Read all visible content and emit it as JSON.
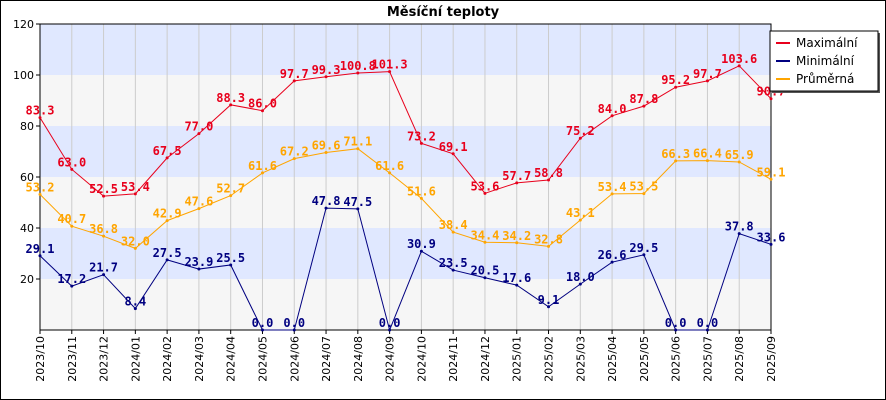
{
  "chart_data": {
    "type": "line",
    "title": "Měsíční teploty",
    "xlabel": "",
    "ylabel": "",
    "ylim": [
      0,
      120
    ],
    "yticks": [
      20,
      40,
      60,
      80,
      100,
      120
    ],
    "grid": true,
    "legend_position": "top-right",
    "categories": [
      "2023/10",
      "2023/11",
      "2023/12",
      "2024/01",
      "2024/02",
      "2024/03",
      "2024/04",
      "2024/05",
      "2024/06",
      "2024/07",
      "2024/08",
      "2024/09",
      "2024/10",
      "2024/11",
      "2024/12",
      "2025/01",
      "2025/02",
      "2025/03",
      "2025/04",
      "2025/05",
      "2025/06",
      "2025/07",
      "2025/08",
      "2025/09"
    ],
    "series": [
      {
        "name": "Maximální",
        "color": "#e8001c",
        "values": [
          83.3,
          63.0,
          52.5,
          53.4,
          67.5,
          77.0,
          88.3,
          86.0,
          97.7,
          99.3,
          100.8,
          101.3,
          73.2,
          69.1,
          53.6,
          57.7,
          58.8,
          75.2,
          84.0,
          87.8,
          95.2,
          97.7,
          103.6,
          90.7
        ],
        "labels": [
          "83.3",
          "63.0",
          "52.5",
          "53.4",
          "67.5",
          "77.0",
          "88.3",
          "86.0",
          "97.7",
          "99.3",
          "100.8",
          "101.3",
          "73.2",
          "69.1",
          "53.6",
          "57.7",
          "58.8",
          "75.2",
          "84.0",
          "87.8",
          "95.2",
          "97.7",
          "103.6",
          "90.7"
        ]
      },
      {
        "name": "Minimální",
        "color": "#000080",
        "values": [
          29.1,
          17.2,
          21.7,
          8.4,
          27.5,
          23.9,
          25.5,
          0.0,
          0.0,
          47.8,
          47.5,
          0.0,
          30.9,
          23.5,
          20.5,
          17.6,
          9.1,
          18.0,
          26.6,
          29.5,
          0.0,
          0.0,
          37.8,
          33.6
        ],
        "labels": [
          "29.1",
          "17.2",
          "21.7",
          "8.4",
          "27.5",
          "23.9",
          "25.5",
          "0.0",
          "0.0",
          "47.8",
          "47.5",
          "0.0",
          "30.9",
          "23.5",
          "20.5",
          "17.6",
          "9.1",
          "18.0",
          "26.6",
          "29.5",
          "0.0",
          "0.0",
          "37.8",
          "33.6"
        ]
      },
      {
        "name": "Průměrná",
        "color": "#ffa500",
        "values": [
          53.2,
          40.7,
          36.8,
          32.0,
          42.9,
          47.6,
          52.7,
          61.6,
          67.2,
          69.6,
          71.1,
          61.6,
          51.6,
          38.4,
          34.4,
          34.2,
          32.8,
          43.1,
          53.4,
          53.5,
          66.3,
          66.4,
          65.9,
          59.1
        ],
        "labels": [
          "53.2",
          "40.7",
          "36.8",
          "32.0",
          "42.9",
          "47.6",
          "52.7",
          "61.6",
          "67.2",
          "69.6",
          "71.1",
          "61.6",
          "51.6",
          "38.4",
          "34.4",
          "34.2",
          "32.8",
          "43.1",
          "53.4",
          "53.5",
          "66.3",
          "66.4",
          "65.9",
          "59.1"
        ]
      }
    ]
  }
}
